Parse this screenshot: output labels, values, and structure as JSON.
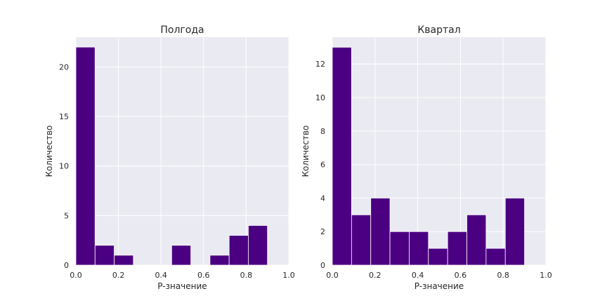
{
  "chart_data": [
    {
      "type": "bar",
      "title": "Полгода",
      "xlabel": "P-значение",
      "ylabel": "Количество",
      "xlim": [
        0,
        1
      ],
      "ylim": [
        0,
        23
      ],
      "xticks": [
        "0.0",
        "0.2",
        "0.4",
        "0.6",
        "0.8",
        "1.0"
      ],
      "yticks": [
        0,
        5,
        10,
        15,
        20
      ],
      "grid": true,
      "bin_edges": [
        0.0,
        0.09,
        0.18,
        0.27,
        0.36,
        0.45,
        0.54,
        0.63,
        0.72,
        0.81,
        0.9
      ],
      "values": [
        22,
        2,
        1,
        0,
        0,
        2,
        0,
        1,
        3,
        4
      ]
    },
    {
      "type": "bar",
      "title": "Квартал",
      "xlabel": "P-значение",
      "ylabel": "Количество",
      "xlim": [
        0,
        1
      ],
      "ylim": [
        0,
        13.6
      ],
      "xticks": [
        "0.0",
        "0.2",
        "0.4",
        "0.6",
        "0.8",
        "1.0"
      ],
      "yticks": [
        0,
        2,
        4,
        6,
        8,
        10,
        12
      ],
      "grid": true,
      "bin_edges": [
        0.0,
        0.09,
        0.18,
        0.27,
        0.36,
        0.45,
        0.54,
        0.63,
        0.72,
        0.81,
        0.9
      ],
      "values": [
        13,
        3,
        4,
        2,
        2,
        1,
        2,
        3,
        1,
        4
      ]
    }
  ],
  "colors": {
    "bar": "#4b0082",
    "plot_bg": "#eaeaf2",
    "grid": "#ffffff"
  }
}
